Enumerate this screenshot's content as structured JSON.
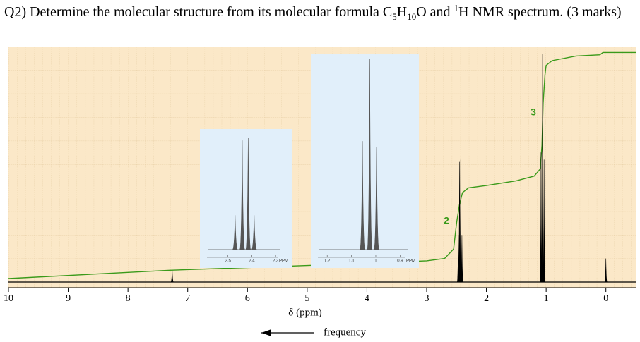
{
  "question": [
    "Q2) Determine the molecular structure from its molecular formula C",
    "5",
    "H",
    "10",
    "O and ",
    "1",
    "H NMR spectrum. (3 marks)"
  ],
  "chart_data": {
    "type": "nmr",
    "xlabel": "δ (ppm)",
    "direction_label": "frequency",
    "xlim": [
      10,
      -0.5
    ],
    "xticks": [
      10,
      9,
      8,
      7,
      6,
      5,
      4,
      3,
      2,
      1,
      0
    ],
    "ylim": [
      0,
      100
    ],
    "grid": true,
    "spectrum_color": "#000000",
    "integral_color": "#3a9a1a",
    "peaks": {
      "x": [
        7.26,
        2.47,
        2.45,
        2.43,
        2.41,
        1.085,
        1.06,
        1.035,
        0
      ],
      "values": [
        5,
        20,
        51,
        52,
        20,
        55,
        97,
        52,
        10
      ]
    },
    "integral": {
      "x": [
        10,
        7.3,
        5,
        3,
        2.7,
        2.55,
        2.5,
        2.45,
        2.4,
        2.3,
        2.0,
        1.5,
        1.2,
        1.1,
        1.07,
        1.05,
        1.02,
        1.0,
        0.9,
        0.5,
        0.1,
        0.05,
        -0.5
      ],
      "values": [
        1.5,
        5,
        7,
        9,
        10,
        14,
        25,
        33,
        38,
        40,
        41,
        43,
        45,
        48,
        58,
        76,
        88,
        92,
        94,
        96,
        96.5,
        97.5,
        97.5
      ]
    },
    "annotations": [
      "2",
      "3"
    ],
    "insets": [
      {
        "xlim": [
          2.6,
          2.25
        ],
        "xticks": [
          2.5,
          2.4,
          2.3
        ],
        "xlabel": "PPM",
        "ylim": [
          0,
          100
        ],
        "peaks": {
          "x": [
            2.47,
            2.44,
            2.415,
            2.39
          ],
          "values": [
            30,
            95,
            97,
            30
          ]
        }
      },
      {
        "xlim": [
          1.25,
          0.84
        ],
        "xticks": [
          1.2,
          1.1,
          1.0,
          0.9
        ],
        "xlabel": "PPM",
        "ylim": [
          0,
          100
        ],
        "peaks": {
          "x": [
            1.055,
            1.025,
            0.997
          ],
          "values": [
            57,
            100,
            54
          ]
        }
      }
    ]
  }
}
